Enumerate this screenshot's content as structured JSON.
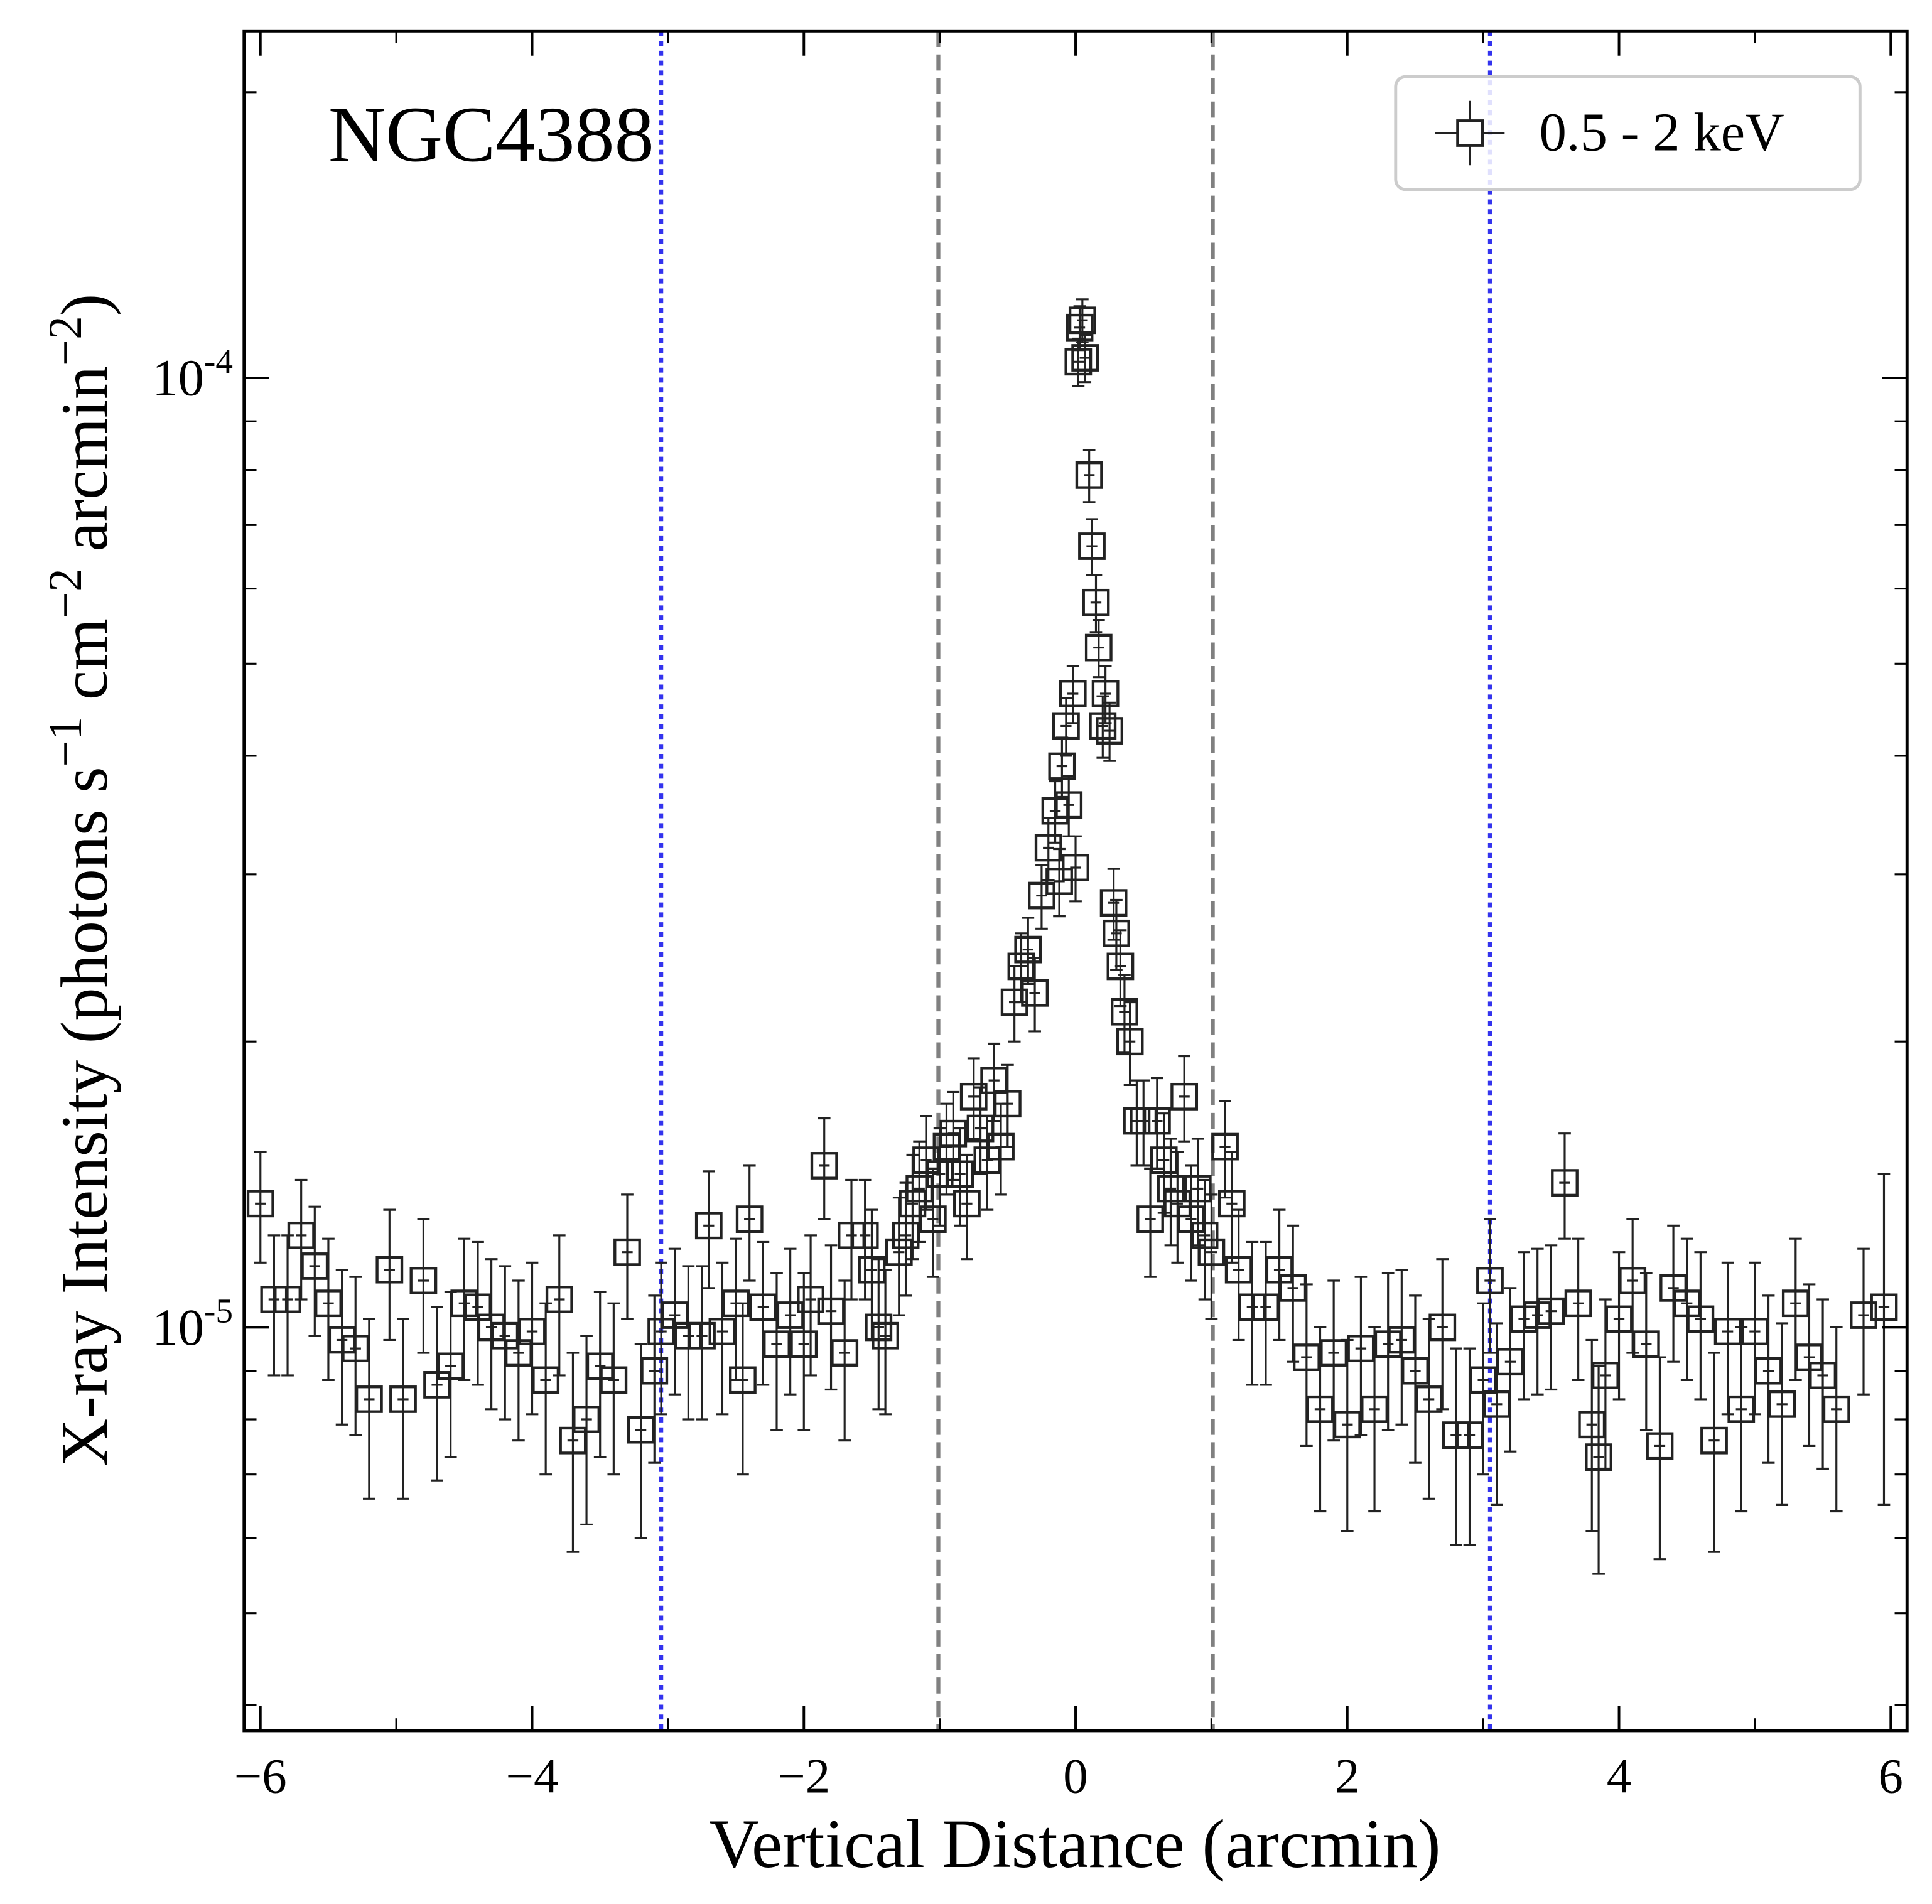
{
  "chart_data": {
    "type": "scatter",
    "annotation": "NGC4388",
    "xlabel": "Vertical Distance (arcmin)",
    "ylabel": [
      {
        "text": "X-ray Intensity (photons s"
      },
      {
        "sup": "−1"
      },
      {
        "text": " cm"
      },
      {
        "sup": "−2"
      },
      {
        "text": " arcmin"
      },
      {
        "sup": "−2"
      },
      {
        "text": ")"
      }
    ],
    "xlim": [
      -6.12,
      6.12
    ],
    "ylim": [
      3.76e-06,
      0.000232
    ],
    "log_y": true,
    "xticks": [
      {
        "value": -6,
        "label": "−6"
      },
      {
        "value": -4,
        "label": "−4"
      },
      {
        "value": -2,
        "label": "−2"
      },
      0,
      2,
      4,
      6
    ],
    "xticks_minor": [
      -5,
      -3,
      -1,
      1,
      3,
      5
    ],
    "yticks": [
      {
        "value": 1e-05,
        "label": "10",
        "exponent": "-5"
      },
      {
        "value": 0.0001,
        "label": "10",
        "exponent": "-4"
      }
    ],
    "yticks_minor": [
      4e-06,
      5e-06,
      6e-06,
      7e-06,
      8e-06,
      9e-06,
      2e-05,
      3e-05,
      4e-05,
      5e-05,
      6e-05,
      7e-05,
      8e-05,
      9e-05,
      0.0002
    ],
    "legend": "upper right",
    "vlines": [
      {
        "x": -1.01,
        "style": "dashed",
        "color": "#808080"
      },
      {
        "x": 1.01,
        "style": "dashed",
        "color": "#808080"
      },
      {
        "x": -3.05,
        "style": "dotted",
        "color": "#3333ee"
      },
      {
        "x": 3.05,
        "style": "dotted",
        "color": "#3333ee"
      }
    ],
    "x": [
      -6.0,
      -5.9,
      -5.8,
      -5.7,
      -5.6,
      -5.5,
      -5.4,
      -5.3,
      -5.2,
      -5.05,
      -4.95,
      -4.8,
      -4.7,
      -4.6,
      -4.5,
      -4.4,
      -4.3,
      -4.2,
      -4.1,
      -4.0,
      -3.9,
      -3.8,
      -3.7,
      -3.6,
      -3.5,
      -3.4,
      -3.3,
      -3.2,
      -3.1,
      -3.05,
      -2.95,
      -2.85,
      -2.75,
      -2.7,
      -2.6,
      -2.5,
      -2.45,
      -2.4,
      -2.3,
      -2.2,
      -2.1,
      -2.0,
      -1.95,
      -1.85,
      -1.8,
      -1.7,
      -1.65,
      -1.55,
      -1.5,
      -1.45,
      -1.4,
      -1.3,
      -1.25,
      -1.2,
      -1.15,
      -1.1,
      -1.05,
      -1.0,
      -0.95,
      -0.9,
      -0.85,
      -0.8,
      -0.75,
      -0.7,
      -0.65,
      -0.6,
      -0.55,
      -0.5,
      -0.45,
      -0.4,
      -0.35,
      -0.3,
      -0.25,
      -0.2,
      -0.15,
      -0.12,
      -0.1,
      -0.07,
      -0.05,
      -0.02,
      0.0,
      0.02,
      0.03,
      0.05,
      0.07,
      0.1,
      0.12,
      0.15,
      0.17,
      0.2,
      0.22,
      0.25,
      0.28,
      0.3,
      0.33,
      0.36,
      0.4,
      0.45,
      0.5,
      0.55,
      0.6,
      0.65,
      0.7,
      0.75,
      0.8,
      0.85,
      0.9,
      0.95,
      1.0,
      1.1,
      1.15,
      1.2,
      1.3,
      1.4,
      1.5,
      1.6,
      1.7,
      1.8,
      1.9,
      2.0,
      2.1,
      2.2,
      2.3,
      2.4,
      2.5,
      2.6,
      2.7,
      2.8,
      2.9,
      3.0,
      3.05,
      3.1,
      3.2,
      3.3,
      3.4,
      3.5,
      3.6,
      3.7,
      3.8,
      3.85,
      3.9,
      4.0,
      4.1,
      4.2,
      4.3,
      4.4,
      4.5,
      4.6,
      4.7,
      4.8,
      4.9,
      5.0,
      5.1,
      5.2,
      5.3,
      5.4,
      5.5,
      5.6,
      5.8,
      5.95
    ],
    "series": [
      {
        "name": "0.5 - 2 keV",
        "color": "#222222",
        "x_err": 0.04,
        "values": [
          1.35e-05,
          1.07e-05,
          1.07e-05,
          1.25e-05,
          1.16e-05,
          1.06e-05,
          9.7e-06,
          9.5e-06,
          8.4e-06,
          1.15e-05,
          8.4e-06,
          1.12e-05,
          8.7e-06,
          9.1e-06,
          1.06e-05,
          1.05e-05,
          1e-05,
          9.8e-06,
          9.4e-06,
          9.9e-06,
          8.8e-06,
          1.07e-05,
          7.6e-06,
          8e-06,
          9.1e-06,
          8.8e-06,
          1.2e-05,
          7.8e-06,
          9e-06,
          9.9e-06,
          1.03e-05,
          9.8e-06,
          9.8e-06,
          1.28e-05,
          9.9e-06,
          1.06e-05,
          8.8e-06,
          1.3e-05,
          1.05e-05,
          9.6e-06,
          1.03e-05,
          9.6e-06,
          1.07e-05,
          1.48e-05,
          1.04e-05,
          9.4e-06,
          1.25e-05,
          1.25e-05,
          1.15e-05,
          1e-05,
          9.8e-06,
          1.2e-05,
          1.25e-05,
          1.35e-05,
          1.4e-05,
          1.5e-05,
          1.3e-05,
          1.45e-05,
          1.55e-05,
          1.6e-05,
          1.45e-05,
          1.35e-05,
          1.75e-05,
          1.62e-05,
          1.5e-05,
          1.82e-05,
          1.55e-05,
          1.72e-05,
          2.2e-05,
          2.4e-05,
          2.5e-05,
          2.25e-05,
          2.85e-05,
          3.2e-05,
          3.5e-05,
          2.95e-05,
          3.9e-05,
          4.3e-05,
          3.55e-05,
          4.65e-05,
          3.05e-05,
          0.000104,
          0.000113,
          0.000115,
          0.000105,
          7.9e-05,
          6.65e-05,
          5.8e-05,
          5.2e-05,
          4.3e-05,
          4.65e-05,
          4.25e-05,
          2.8e-05,
          2.6e-05,
          2.4e-05,
          2.15e-05,
          2e-05,
          1.65e-05,
          1.65e-05,
          1.3e-05,
          1.65e-05,
          1.5e-05,
          1.4e-05,
          1.35e-05,
          1.75e-05,
          1.3e-05,
          1.4e-05,
          1.25e-05,
          1.2e-05,
          1.55e-05,
          1.35e-05,
          1.15e-05,
          1.05e-05,
          1.05e-05,
          1.15e-05,
          1.1e-05,
          9.3e-06,
          8.2e-06,
          9.4e-06,
          7.9e-06,
          9.5e-06,
          8.2e-06,
          9.6e-06,
          9.7e-06,
          9e-06,
          8.4e-06,
          1e-05,
          7.7e-06,
          7.7e-06,
          8.8e-06,
          1.12e-05,
          8.3e-06,
          9.2e-06,
          1.02e-05,
          1.03e-05,
          1.04e-05,
          1.42e-05,
          1.06e-05,
          7.9e-06,
          7.3e-06,
          8.9e-06,
          1.02e-05,
          1.12e-05,
          9.6e-06,
          7.5e-06,
          1.1e-05,
          1.06e-05,
          1.02e-05,
          7.6e-06,
          9.9e-06,
          8.2e-06,
          9.9e-06,
          9e-06,
          8.3e-06,
          1.06e-05,
          9.3e-06,
          8.9e-06,
          8.2e-06,
          1.03e-05,
          1.05e-05
        ],
        "y_err": [
          1.8e-06,
          1.8e-06,
          1.8e-06,
          1.8e-06,
          1.8e-06,
          1.8e-06,
          1.8e-06,
          1.8e-06,
          1.8e-06,
          1.8e-06,
          1.8e-06,
          1.8e-06,
          1.8e-06,
          1.8e-06,
          1.8e-06,
          1.8e-06,
          1.8e-06,
          1.8e-06,
          1.8e-06,
          1.8e-06,
          1.8e-06,
          1.8e-06,
          1.8e-06,
          1.8e-06,
          1.8e-06,
          1.8e-06,
          1.8e-06,
          1.8e-06,
          1.8e-06,
          1.8e-06,
          1.8e-06,
          1.8e-06,
          1.8e-06,
          1.8e-06,
          1.8e-06,
          1.8e-06,
          1.8e-06,
          1.8e-06,
          1.8e-06,
          1.8e-06,
          1.8e-06,
          1.8e-06,
          1.8e-06,
          1.8e-06,
          1.8e-06,
          1.8e-06,
          1.8e-06,
          1.8e-06,
          1.8e-06,
          1.8e-06,
          1.7e-06,
          1.7e-06,
          1.7e-06,
          1.7e-06,
          1.7e-06,
          1.7e-06,
          1.7e-06,
          1.7e-06,
          1.7e-06,
          1.7e-06,
          1.7e-06,
          1.7e-06,
          1.7e-06,
          1.7e-06,
          1.7e-06,
          1.7e-06,
          1.7e-06,
          1.7e-06,
          2e-06,
          2e-06,
          2e-06,
          2e-06,
          2.2e-06,
          2.4e-06,
          2.6e-06,
          2.4e-06,
          2.8e-06,
          3e-06,
          2.6e-06,
          3.2e-06,
          2.4e-06,
          6e-06,
          6e-06,
          6e-06,
          6e-06,
          5e-06,
          4.5e-06,
          4e-06,
          3.6e-06,
          3.2e-06,
          3.2e-06,
          3e-06,
          2.4e-06,
          2.2e-06,
          2.2e-06,
          2e-06,
          2e-06,
          1.7e-06,
          1.7e-06,
          1.7e-06,
          1.8e-06,
          1.8e-06,
          1.8e-06,
          1.8e-06,
          1.8e-06,
          1.8e-06,
          1.8e-06,
          1.8e-06,
          1.8e-06,
          1.8e-06,
          1.8e-06,
          1.8e-06,
          1.8e-06,
          1.8e-06,
          1.8e-06,
          1.8e-06,
          1.8e-06,
          1.8e-06,
          1.8e-06,
          1.8e-06,
          1.8e-06,
          1.8e-06,
          1.8e-06,
          1.8e-06,
          1.8e-06,
          1.8e-06,
          1.8e-06,
          1.8e-06,
          1.8e-06,
          1.8e-06,
          1.8e-06,
          1.8e-06,
          1.8e-06,
          1.8e-06,
          1.8e-06,
          1.8e-06,
          1.8e-06,
          1.8e-06,
          1.8e-06,
          1.8e-06,
          1.8e-06,
          1.8e-06,
          1.8e-06,
          1.8e-06,
          1.8e-06,
          1.8e-06,
          1.8e-06,
          1.8e-06,
          1.8e-06,
          1.8e-06,
          1.8e-06,
          1.8e-06,
          1.8e-06,
          1.8e-06,
          1.8e-06,
          1.8e-06,
          1.8e-06,
          1.8e-06,
          1.8e-06,
          4e-06
        ]
      }
    ]
  }
}
